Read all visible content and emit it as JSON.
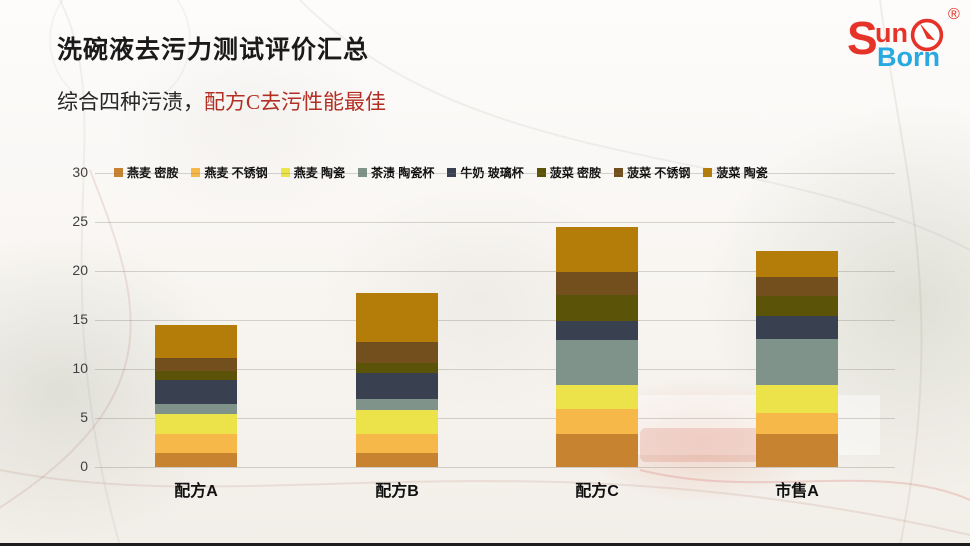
{
  "page": {
    "title": "洗碗液去污力测试评价汇总",
    "subtitle_plain": "综合四种污渍，",
    "subtitle_highlight": "配方C去污性能最佳"
  },
  "logo": {
    "s": "S",
    "un": "un",
    "born": "Born",
    "registered": "®",
    "icon": "sundial-circle-icon",
    "red": "#e63329",
    "blue": "#29a9e1"
  },
  "chart_data": {
    "type": "bar",
    "stacked": true,
    "title": "",
    "xlabel": "",
    "ylabel": "",
    "categories": [
      "配方A",
      "配方B",
      "配方C",
      "市售A"
    ],
    "series": [
      {
        "name": "燕麦 密胺",
        "color": "#c7832f",
        "values": [
          1.4,
          1.4,
          3.4,
          3.4
        ]
      },
      {
        "name": "燕麦 不锈钢",
        "color": "#f7b84a",
        "values": [
          2.0,
          2.0,
          2.5,
          2.1
        ]
      },
      {
        "name": "燕麦 陶瓷",
        "color": "#ece24a",
        "values": [
          2.0,
          2.4,
          2.5,
          2.9
        ]
      },
      {
        "name": "茶渍 陶瓷杯",
        "color": "#80938a",
        "values": [
          1.0,
          1.1,
          4.6,
          4.7
        ]
      },
      {
        "name": "牛奶 玻璃杯",
        "color": "#394050",
        "values": [
          2.5,
          2.7,
          1.9,
          2.3
        ]
      },
      {
        "name": "菠菜 密胺",
        "color": "#5a5308",
        "values": [
          0.9,
          1.0,
          2.7,
          2.0
        ]
      },
      {
        "name": "菠菜 不锈钢",
        "color": "#734f1e",
        "values": [
          1.3,
          2.2,
          2.3,
          2.0
        ]
      },
      {
        "name": "菠菜 陶瓷",
        "color": "#b47d0a",
        "values": [
          3.4,
          5.0,
          4.6,
          2.6
        ]
      }
    ],
    "totals": [
      14.5,
      17.8,
      24.5,
      22.0
    ],
    "ylim": [
      0,
      30
    ],
    "yticks": [
      0,
      5,
      10,
      15,
      20,
      25,
      30
    ],
    "grid": true,
    "legend_position": "top"
  }
}
